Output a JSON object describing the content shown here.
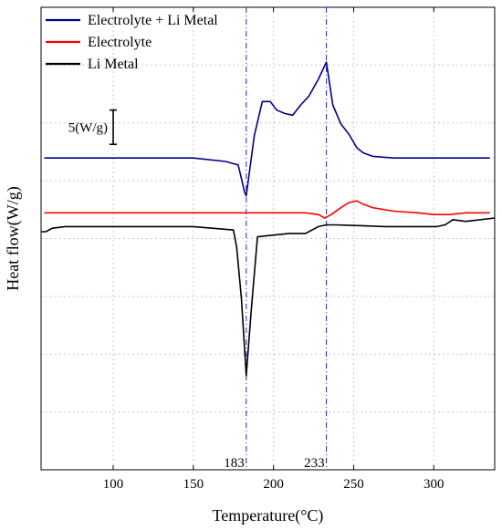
{
  "chart_data": {
    "type": "line",
    "title": "",
    "xlabel": "Temperature(°C)",
    "ylabel": "Heat flow(W/g)",
    "xlim": [
      55,
      338
    ],
    "ylim": [
      -10,
      17
    ],
    "x_ticks": [
      100,
      150,
      200,
      250,
      300
    ],
    "x_tick_labels": [
      "100",
      "150",
      "200",
      "250",
      "300"
    ],
    "grid": true,
    "legend_position": "top-left",
    "y_tick_labels_shown": false,
    "series": [
      {
        "name": "Electrolyte + Li Metal",
        "color": "#00008B",
        "x": [
          57,
          100,
          150,
          170,
          178,
          182,
          183,
          188,
          193,
          198,
          202,
          207,
          212,
          217,
          222,
          228,
          233,
          237,
          242,
          247,
          252,
          256,
          262,
          275,
          290,
          300,
          320,
          335
        ],
        "y": [
          8.2,
          8.2,
          8.2,
          8.0,
          7.8,
          6.2,
          6.0,
          9.5,
          11.5,
          11.5,
          11.0,
          10.8,
          10.7,
          11.3,
          11.8,
          12.8,
          13.8,
          11.3,
          10.2,
          9.6,
          8.8,
          8.5,
          8.3,
          8.2,
          8.2,
          8.2,
          8.2,
          8.2
        ],
        "annotation": "5(W/g)"
      },
      {
        "name": "Electrolyte",
        "color": "#FF0000",
        "x": [
          57,
          100,
          150,
          200,
          220,
          228,
          232,
          236,
          242,
          247,
          252,
          256,
          262,
          275,
          290,
          300,
          310,
          320,
          335
        ],
        "y": [
          5.0,
          5.0,
          5.0,
          5.0,
          5.0,
          4.9,
          4.7,
          4.9,
          5.3,
          5.6,
          5.7,
          5.5,
          5.3,
          5.1,
          5.0,
          4.9,
          4.9,
          5.0,
          5.0
        ],
        "label_x": [
          183,
          233
        ]
      },
      {
        "name": "Li Metal",
        "color": "#000000",
        "x": [
          55,
          58,
          62,
          70,
          80,
          100,
          150,
          175,
          177,
          180,
          183,
          186,
          190,
          200,
          210,
          220,
          228,
          233,
          238,
          255,
          270,
          285,
          297,
          302,
          307,
          312,
          320,
          338
        ],
        "y": [
          3.9,
          3.9,
          4.1,
          4.2,
          4.2,
          4.2,
          4.2,
          4.0,
          3.0,
          0.0,
          -4.5,
          -0.8,
          3.6,
          3.7,
          3.8,
          3.8,
          4.2,
          4.3,
          4.3,
          4.25,
          4.2,
          4.2,
          4.2,
          4.2,
          4.3,
          4.6,
          4.5,
          4.7
        ]
      }
    ],
    "vlines": [
      {
        "x": 183,
        "label": "183",
        "color": "#2020CC"
      },
      {
        "x": 233,
        "label": "233",
        "color": "#2020CC"
      }
    ],
    "scale_bar": {
      "label": "5(W/g)",
      "from": 9.0,
      "to": 11.0,
      "x": 100
    }
  }
}
